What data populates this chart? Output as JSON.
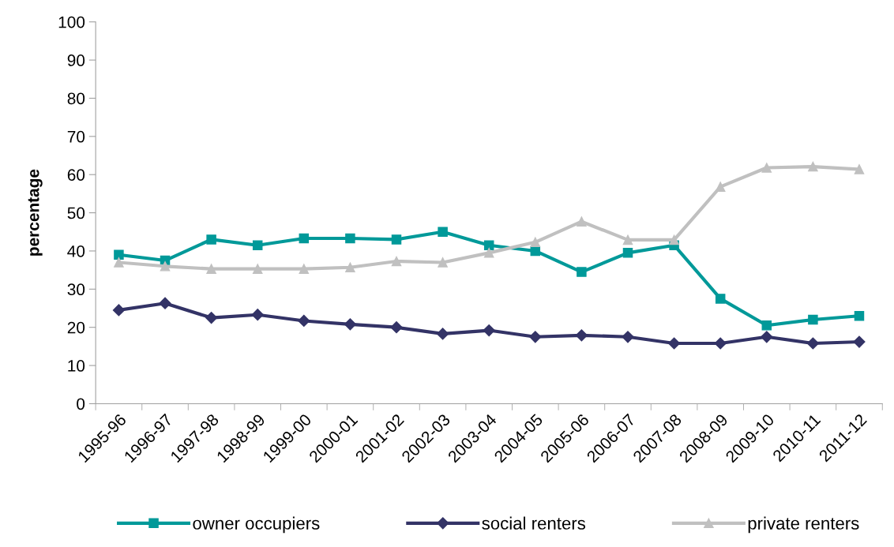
{
  "chart_data": {
    "type": "line",
    "ylabel": "percentage",
    "categories": [
      "1995-96",
      "1996-97",
      "1997-98",
      "1998-99",
      "1999-00",
      "2000-01",
      "2001-02",
      "2002-03",
      "2003-04",
      "2004-05",
      "2005-06",
      "2006-07",
      "2007-08",
      "2008-09",
      "2009-10",
      "2010-11",
      "2011-12"
    ],
    "series": [
      {
        "name": "owner occupiers",
        "color": "#009999",
        "marker": "square",
        "values": [
          39,
          37.5,
          43,
          41.5,
          43.3,
          43.3,
          43,
          45,
          41.5,
          40,
          34.5,
          39.5,
          41.5,
          27.5,
          20.5,
          22,
          23
        ]
      },
      {
        "name": "social renters",
        "color": "#333366",
        "marker": "diamond",
        "values": [
          24.5,
          26.3,
          22.5,
          23.3,
          21.7,
          20.8,
          20,
          18.3,
          19.2,
          17.5,
          17.9,
          17.5,
          15.8,
          15.8,
          17.5,
          15.8,
          16.2
        ]
      },
      {
        "name": "private renters",
        "color": "#c0c0c0",
        "marker": "triangle",
        "values": [
          37,
          36,
          35.3,
          35.3,
          35.3,
          35.7,
          37.3,
          37,
          39.5,
          42.3,
          47.7,
          42.9,
          42.9,
          56.8,
          61.8,
          62.1,
          61.4
        ]
      }
    ],
    "ylim": [
      0,
      100
    ],
    "yticks": [
      0,
      10,
      20,
      30,
      40,
      50,
      60,
      70,
      80,
      90,
      100
    ],
    "grid": false,
    "legend": "bottom"
  }
}
